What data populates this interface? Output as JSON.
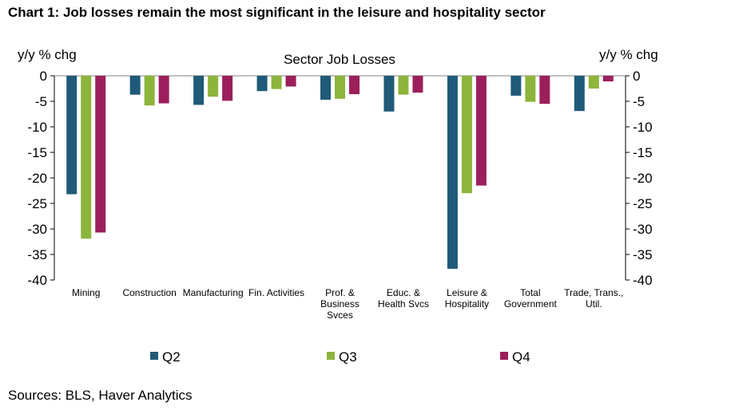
{
  "title": "Chart 1: Job losses remain the most significant in the leisure and hospitality sector",
  "source": "Sources: BLS, Haver Analytics",
  "chart_data": {
    "type": "bar",
    "title": "Sector Job Losses",
    "ylabel_left": "y/y % chg",
    "ylabel_right": "y/y % chg",
    "ylim": [
      -40,
      0
    ],
    "yticks": [
      0,
      -5,
      -10,
      -15,
      -20,
      -25,
      -30,
      -35,
      -40
    ],
    "grid": false,
    "legend_position": "bottom",
    "categories": [
      [
        "Mining"
      ],
      [
        "Construction"
      ],
      [
        "Manufacturing"
      ],
      [
        "Fin. Activities"
      ],
      [
        "Prof. &",
        "Business",
        "Svces"
      ],
      [
        "Educ. &",
        "Health Svcs"
      ],
      [
        "Leisure &",
        "Hospitality"
      ],
      [
        "Total",
        "Government"
      ],
      [
        "Trade, Trans.,",
        "Util."
      ]
    ],
    "series": [
      {
        "name": "Q2",
        "color": "#1f5a78",
        "values": [
          -23.2,
          -3.7,
          -5.7,
          -3.0,
          -4.7,
          -7.0,
          -37.8,
          -3.9,
          -6.9
        ]
      },
      {
        "name": "Q3",
        "color": "#8db53c",
        "values": [
          -31.9,
          -5.8,
          -4.1,
          -2.6,
          -4.5,
          -3.7,
          -23.0,
          -5.1,
          -2.5
        ]
      },
      {
        "name": "Q4",
        "color": "#9b1f5b",
        "values": [
          -30.7,
          -5.4,
          -4.9,
          -2.1,
          -3.6,
          -3.3,
          -21.5,
          -5.5,
          -1.1
        ]
      }
    ]
  }
}
